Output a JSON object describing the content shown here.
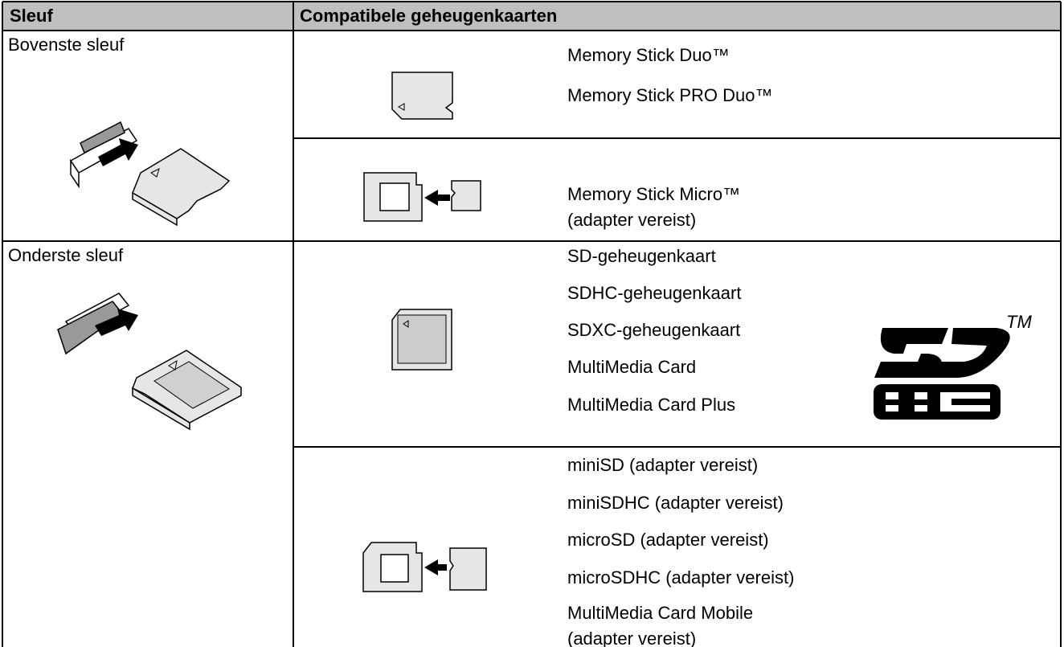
{
  "table": {
    "header": [
      "Sleuf",
      "Compatibele geheugenkaarten"
    ],
    "rows": [
      {
        "slot": "Bovenste sleuf",
        "groups": [
          [
            "Memory Stick Duo™",
            "Memory Stick PRO Duo™"
          ],
          [
            "Memory Stick Micro™",
            "(adapter vereist)"
          ]
        ]
      },
      {
        "slot": "Onderste sleuf",
        "groups": [
          [
            "SD-geheugenkaart",
            "SDHC-geheugenkaart",
            "SDXC-geheugenkaart",
            "MultiMedia Card",
            "MultiMedia Card Plus"
          ],
          [
            "miniSD (adapter vereist)",
            "miniSDHC (adapter vereist)",
            "microSD (adapter vereist)",
            "microSDHC (adapter vereist)",
            "MultiMedia Card Mobile",
            "(adapter vereist)"
          ]
        ]
      }
    ]
  },
  "logo": {
    "trademark": "TM"
  }
}
